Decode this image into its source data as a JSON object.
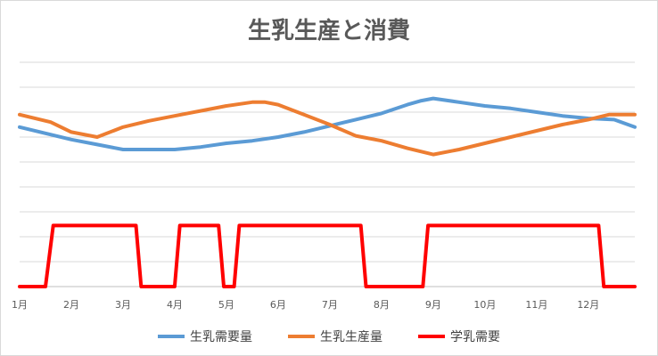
{
  "chart_data": {
    "type": "line",
    "title": "生乳生産と消費",
    "xlabel": "",
    "ylabel": "",
    "x_range": [
      1,
      12.9
    ],
    "ylim": [
      0,
      9
    ],
    "grid": true,
    "y_tick_labels_shown": false,
    "legend_position": "bottom",
    "x_ticks": [
      {
        "x": 1,
        "label": "1月"
      },
      {
        "x": 2,
        "label": "2月"
      },
      {
        "x": 3,
        "label": "3月"
      },
      {
        "x": 4,
        "label": "4月"
      },
      {
        "x": 5,
        "label": "5月"
      },
      {
        "x": 6,
        "label": "6月"
      },
      {
        "x": 7,
        "label": "7月"
      },
      {
        "x": 8,
        "label": "8月"
      },
      {
        "x": 9,
        "label": "9月"
      },
      {
        "x": 10,
        "label": "10月"
      },
      {
        "x": 11,
        "label": "11月"
      },
      {
        "x": 12,
        "label": "12月"
      }
    ],
    "series": [
      {
        "name": "生乳需要量",
        "color": "#5b9bd5",
        "points": [
          [
            1,
            6.4
          ],
          [
            1.5,
            6.15
          ],
          [
            2,
            5.9
          ],
          [
            2.5,
            5.7
          ],
          [
            3,
            5.5
          ],
          [
            3.5,
            5.5
          ],
          [
            4,
            5.5
          ],
          [
            4.5,
            5.6
          ],
          [
            5,
            5.75
          ],
          [
            5.5,
            5.85
          ],
          [
            6,
            6.0
          ],
          [
            6.5,
            6.2
          ],
          [
            7,
            6.45
          ],
          [
            7.5,
            6.7
          ],
          [
            8,
            6.95
          ],
          [
            8.5,
            7.3
          ],
          [
            8.75,
            7.45
          ],
          [
            9,
            7.55
          ],
          [
            9.5,
            7.4
          ],
          [
            10,
            7.25
          ],
          [
            10.5,
            7.15
          ],
          [
            11,
            7.0
          ],
          [
            11.5,
            6.85
          ],
          [
            12,
            6.75
          ],
          [
            12.5,
            6.7
          ],
          [
            12.9,
            6.4
          ]
        ]
      },
      {
        "name": "生乳生産量",
        "color": "#ed7d31",
        "points": [
          [
            1,
            6.9
          ],
          [
            1.6,
            6.6
          ],
          [
            2,
            6.2
          ],
          [
            2.5,
            6.0
          ],
          [
            3,
            6.4
          ],
          [
            3.5,
            6.65
          ],
          [
            4,
            6.85
          ],
          [
            4.5,
            7.05
          ],
          [
            5,
            7.25
          ],
          [
            5.5,
            7.4
          ],
          [
            5.75,
            7.4
          ],
          [
            6,
            7.3
          ],
          [
            6.5,
            6.9
          ],
          [
            7,
            6.5
          ],
          [
            7.5,
            6.05
          ],
          [
            8,
            5.85
          ],
          [
            8.5,
            5.55
          ],
          [
            9,
            5.3
          ],
          [
            9.5,
            5.5
          ],
          [
            10,
            5.75
          ],
          [
            10.5,
            6.0
          ],
          [
            11,
            6.25
          ],
          [
            11.5,
            6.5
          ],
          [
            12,
            6.7
          ],
          [
            12.4,
            6.9
          ],
          [
            12.9,
            6.9
          ]
        ]
      },
      {
        "name": "学乳需要",
        "color": "#ff0000",
        "points": [
          [
            1,
            0
          ],
          [
            1.5,
            0
          ],
          [
            1.65,
            2.45
          ],
          [
            3.25,
            2.45
          ],
          [
            3.35,
            0
          ],
          [
            4,
            0
          ],
          [
            4.1,
            2.45
          ],
          [
            4.85,
            2.45
          ],
          [
            4.95,
            0
          ],
          [
            5.15,
            0
          ],
          [
            5.25,
            2.45
          ],
          [
            7.6,
            2.45
          ],
          [
            7.7,
            0
          ],
          [
            8.8,
            0
          ],
          [
            8.9,
            2.45
          ],
          [
            12.2,
            2.45
          ],
          [
            12.3,
            0
          ],
          [
            12.9,
            0
          ]
        ]
      }
    ]
  }
}
